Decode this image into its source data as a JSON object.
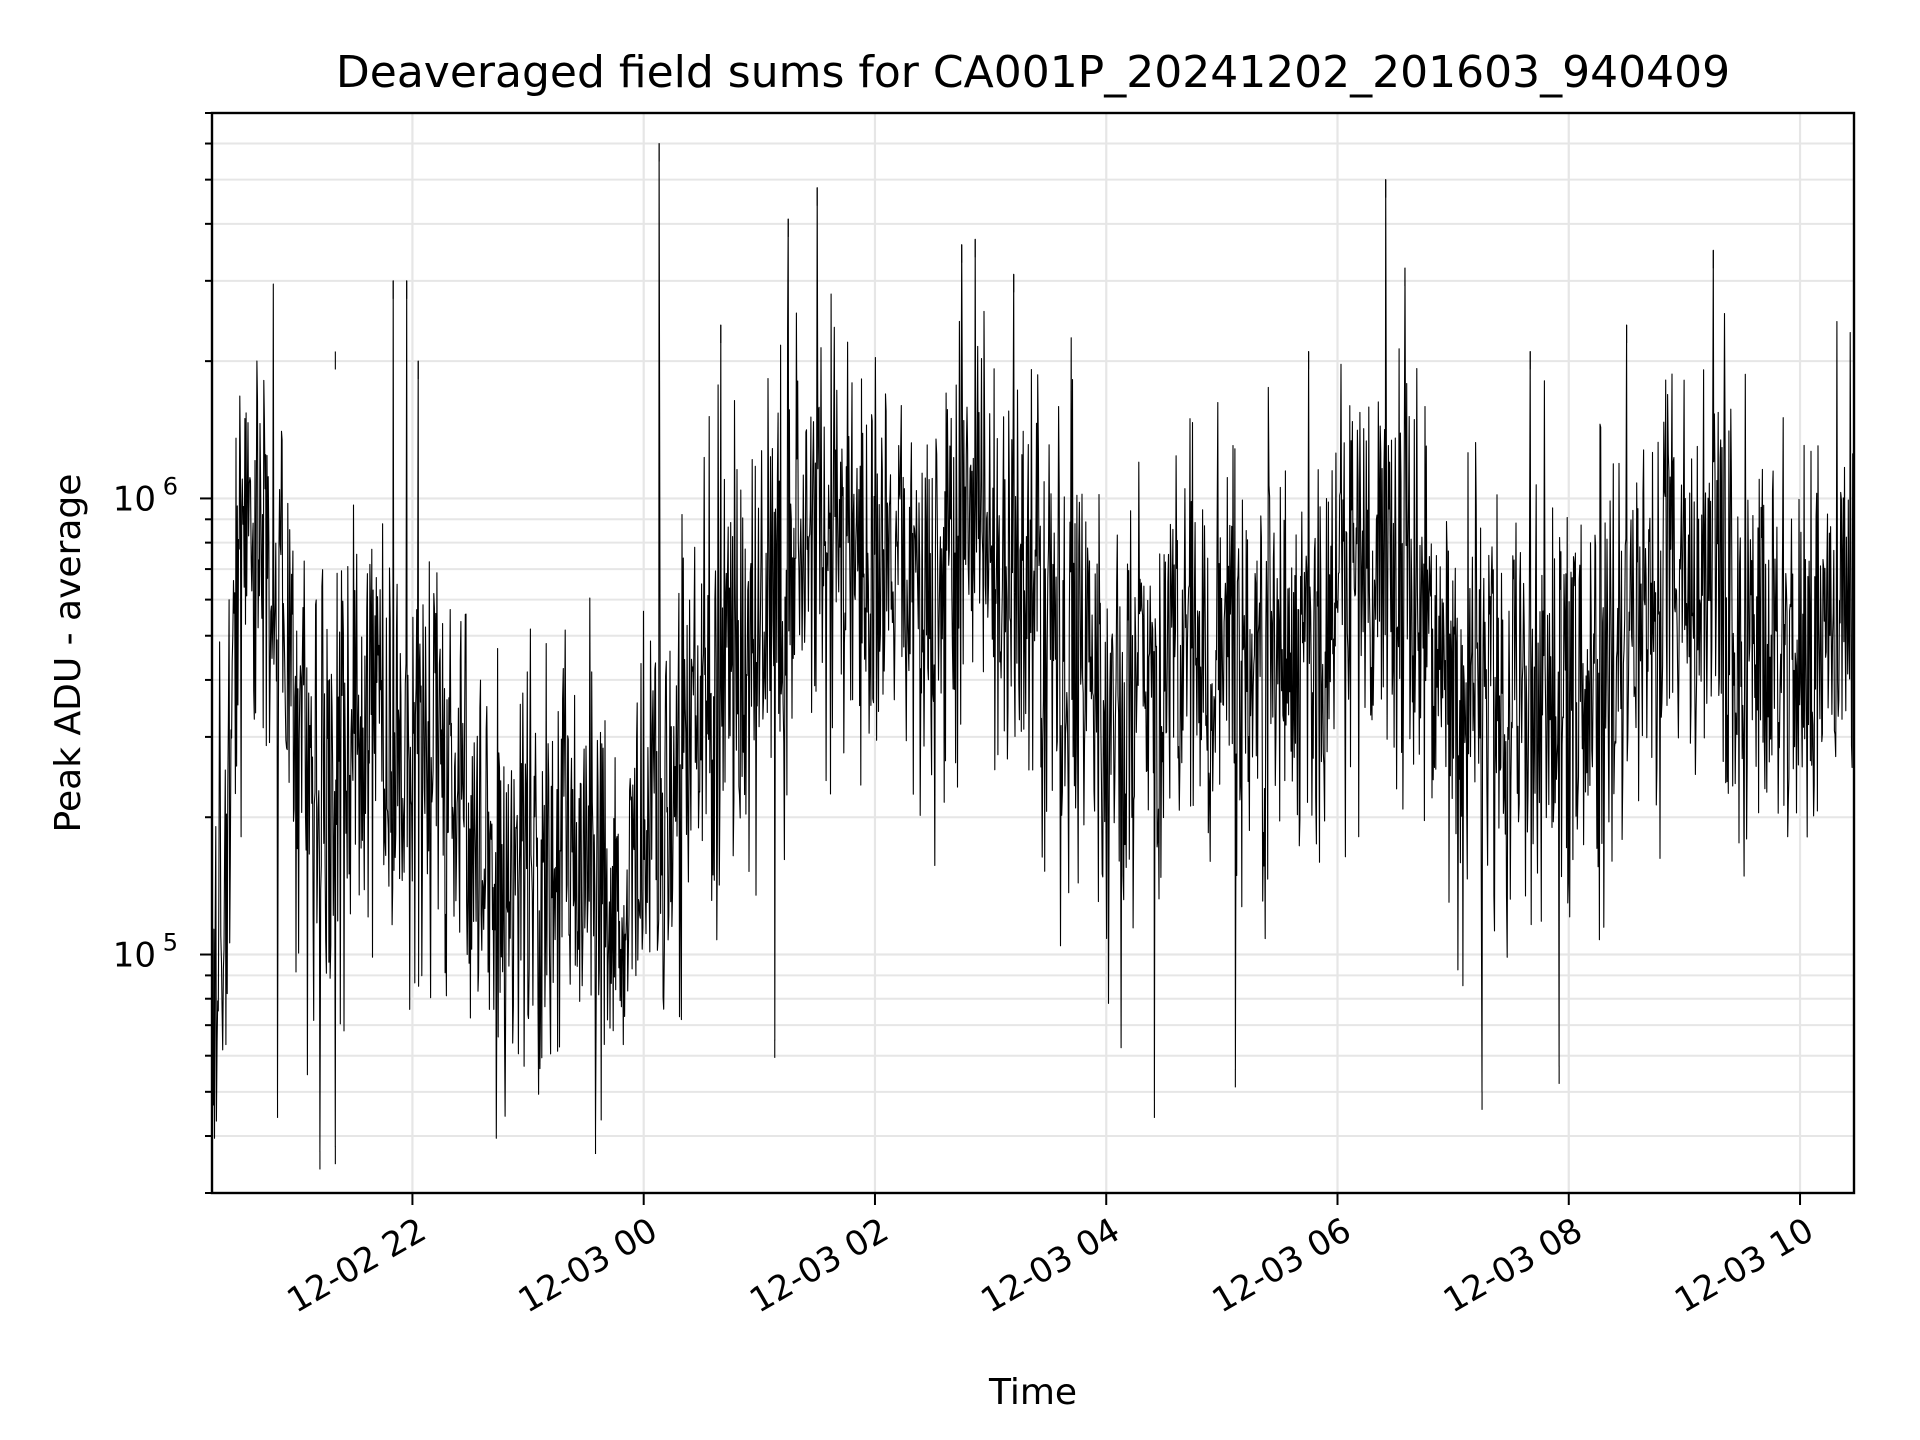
{
  "chart_data": {
    "type": "line",
    "title": "Deaveraged field sums for CA001P_20241202_201603_940409",
    "xlabel": "Time",
    "ylabel": "Peak ADU - average",
    "x_axis": {
      "type": "datetime",
      "range": [
        "2024-12-02T20:16",
        "2024-12-03T10:28"
      ],
      "ticks": [
        {
          "t": "2024-12-02T22:00",
          "label": "12-02 22"
        },
        {
          "t": "2024-12-03T00:00",
          "label": "12-03 00"
        },
        {
          "t": "2024-12-03T02:00",
          "label": "12-03 02"
        },
        {
          "t": "2024-12-03T04:00",
          "label": "12-03 04"
        },
        {
          "t": "2024-12-03T06:00",
          "label": "12-03 06"
        },
        {
          "t": "2024-12-03T08:00",
          "label": "12-03 08"
        },
        {
          "t": "2024-12-03T10:00",
          "label": "12-03 10"
        }
      ]
    },
    "y_axis": {
      "scale": "log",
      "range": [
        30000,
        7000000
      ],
      "major_ticks": [
        {
          "value": 100000,
          "base": "10",
          "exp": "5"
        },
        {
          "value": 1000000,
          "base": "10",
          "exp": "6"
        }
      ]
    },
    "grid": true,
    "line_color": "#000000",
    "series": [
      {
        "values_estimated": [
          [
            "2024-12-02T20:16",
            70000
          ],
          [
            "2024-12-02T20:24",
            160000
          ],
          [
            "2024-12-02T20:30",
            800000
          ],
          [
            "2024-12-02T20:38",
            1000000
          ],
          [
            "2024-12-02T20:45",
            600000
          ],
          [
            "2024-12-02T20:55",
            400000
          ],
          [
            "2024-12-02T21:05",
            250000
          ],
          [
            "2024-12-02T21:15",
            200000
          ],
          [
            "2024-12-02T21:25",
            230000
          ],
          [
            "2024-12-02T21:35",
            300000
          ],
          [
            "2024-12-02T21:45",
            320000
          ],
          [
            "2024-12-02T21:55",
            300000
          ],
          [
            "2024-12-02T22:05",
            280000
          ],
          [
            "2024-12-02T22:20",
            230000
          ],
          [
            "2024-12-02T22:35",
            180000
          ],
          [
            "2024-12-02T22:50",
            150000
          ],
          [
            "2024-12-02T23:05",
            150000
          ],
          [
            "2024-12-02T23:20",
            160000
          ],
          [
            "2024-12-02T23:35",
            150000
          ],
          [
            "2024-12-02T23:50",
            150000
          ],
          [
            "2024-12-03T00:05",
            200000
          ],
          [
            "2024-12-03T00:20",
            280000
          ],
          [
            "2024-12-03T00:35",
            350000
          ],
          [
            "2024-12-03T00:50",
            430000
          ],
          [
            "2024-12-03T01:05",
            600000
          ],
          [
            "2024-12-03T01:20",
            750000
          ],
          [
            "2024-12-03T01:35",
            850000
          ],
          [
            "2024-12-03T01:50",
            750000
          ],
          [
            "2024-12-03T02:05",
            650000
          ],
          [
            "2024-12-03T02:20",
            650000
          ],
          [
            "2024-12-03T02:35",
            800000
          ],
          [
            "2024-12-03T02:50",
            900000
          ],
          [
            "2024-12-03T03:05",
            800000
          ],
          [
            "2024-12-03T03:20",
            600000
          ],
          [
            "2024-12-03T03:35",
            450000
          ],
          [
            "2024-12-03T03:50",
            380000
          ],
          [
            "2024-12-03T04:05",
            330000
          ],
          [
            "2024-12-03T04:20",
            380000
          ],
          [
            "2024-12-03T04:35",
            450000
          ],
          [
            "2024-12-03T04:50",
            470000
          ],
          [
            "2024-12-03T05:05",
            450000
          ],
          [
            "2024-12-03T05:20",
            420000
          ],
          [
            "2024-12-03T05:35",
            460000
          ],
          [
            "2024-12-03T05:50",
            550000
          ],
          [
            "2024-12-03T06:05",
            650000
          ],
          [
            "2024-12-03T06:20",
            720000
          ],
          [
            "2024-12-03T06:35",
            700000
          ],
          [
            "2024-12-03T06:50",
            550000
          ],
          [
            "2024-12-03T07:05",
            400000
          ],
          [
            "2024-12-03T07:20",
            330000
          ],
          [
            "2024-12-03T07:35",
            350000
          ],
          [
            "2024-12-03T07:50",
            380000
          ],
          [
            "2024-12-03T08:05",
            380000
          ],
          [
            "2024-12-03T08:20",
            400000
          ],
          [
            "2024-12-03T08:35",
            550000
          ],
          [
            "2024-12-03T08:50",
            750000
          ],
          [
            "2024-12-03T09:05",
            700000
          ],
          [
            "2024-12-03T09:20",
            550000
          ],
          [
            "2024-12-03T09:35",
            450000
          ],
          [
            "2024-12-03T09:50",
            420000
          ],
          [
            "2024-12-03T10:05",
            430000
          ],
          [
            "2024-12-03T10:20",
            550000
          ],
          [
            "2024-12-03T10:28",
            600000
          ]
        ],
        "noise_spread_decades": 0.75,
        "notable_spikes": [
          [
            "2024-12-03T00:08",
            6000000
          ],
          [
            "2024-12-03T01:30",
            4800000
          ],
          [
            "2024-12-03T01:15",
            4100000
          ],
          [
            "2024-12-03T02:45",
            3600000
          ],
          [
            "2024-12-03T02:52",
            3700000
          ],
          [
            "2024-12-03T03:12",
            3100000
          ],
          [
            "2024-12-03T06:25",
            5000000
          ],
          [
            "2024-12-03T06:35",
            3200000
          ],
          [
            "2024-12-03T09:15",
            3500000
          ],
          [
            "2024-12-02T21:50",
            3000000
          ],
          [
            "2024-12-02T21:57",
            3000000
          ],
          [
            "2024-12-02T21:20",
            2100000
          ],
          [
            "2024-12-02T22:03",
            2000000
          ],
          [
            "2024-12-03T00:40",
            2400000
          ],
          [
            "2024-12-03T05:45",
            2100000
          ],
          [
            "2024-12-03T07:40",
            2100000
          ],
          [
            "2024-12-03T08:30",
            2400000
          ]
        ],
        "notable_dips": [
          [
            "2024-12-02T21:12",
            37000
          ],
          [
            "2024-12-02T21:20",
            38000
          ],
          [
            "2024-12-02T23:35",
            40000
          ],
          [
            "2024-12-03T04:25",
            48000
          ],
          [
            "2024-12-03T07:15",
            50000
          ],
          [
            "2024-12-02T20:50",
            48000
          ],
          [
            "2024-12-03T05:07",
            56000
          ],
          [
            "2024-12-03T07:55",
            57000
          ],
          [
            "2024-12-03T01:08",
            65000
          ]
        ]
      }
    ]
  }
}
